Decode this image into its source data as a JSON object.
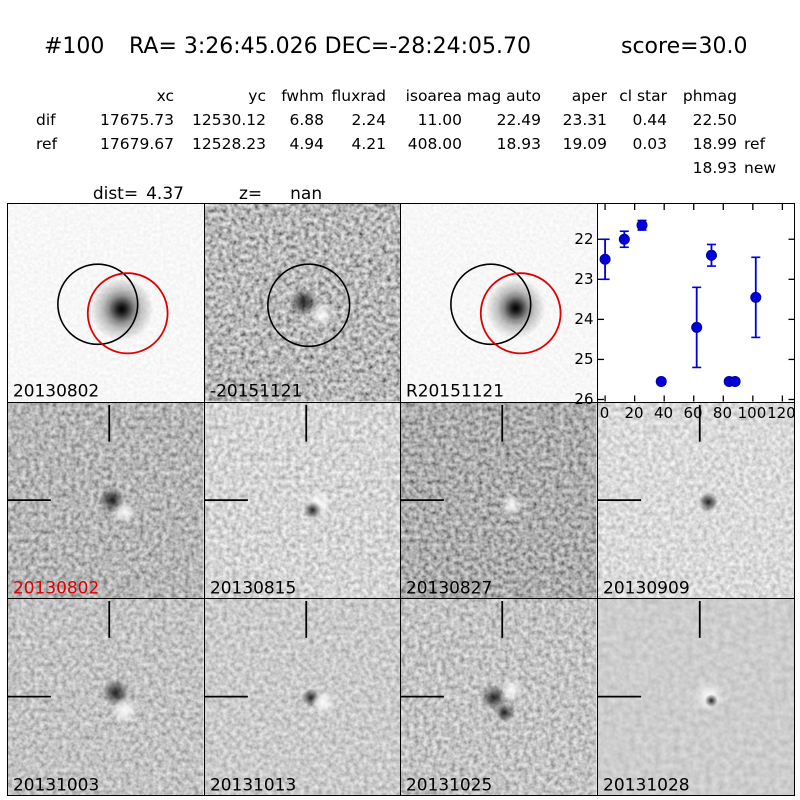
{
  "colors": {
    "accent_blue": "#0000dd",
    "label_red": "#dd0000",
    "frame_black": "#000000",
    "background": "#ffffff"
  },
  "header": {
    "id": "#100",
    "coords": "RA= 3:26:45.026 DEC=-28:24:05.70",
    "score": "score=30.0"
  },
  "table": {
    "columns": [
      "xc",
      "yc",
      "fwhm",
      "fluxrad",
      "isoarea",
      "mag auto",
      "aper",
      "cl star",
      "phmag"
    ],
    "rows": [
      {
        "label": "dif",
        "values": [
          "17675.73",
          "12530.12",
          "6.88",
          "2.24",
          "11.00",
          "22.49",
          "23.31",
          "0.44",
          "22.50"
        ],
        "suffix": ""
      },
      {
        "label": "ref",
        "values": [
          "17679.67",
          "12528.23",
          "4.94",
          "4.21",
          "408.00",
          "18.93",
          "19.09",
          "0.03",
          "18.99"
        ],
        "suffix": "ref"
      }
    ],
    "extra": {
      "value": "18.93",
      "suffix": "new"
    }
  },
  "info": {
    "dist_label": "dist=",
    "dist_value": "4.37",
    "z_label": "z=",
    "z_value": "nan"
  },
  "stamps": [
    {
      "label": "20130802",
      "label_color": "#000000",
      "type": "new-image-with-apertures"
    },
    {
      "label": "-20151121",
      "label_color": "#000000",
      "type": "difference-image"
    },
    {
      "label": "R20151121",
      "label_color": "#000000",
      "type": "reference-image-with-apertures"
    },
    {
      "label": "20130802",
      "label_color": "#dd0000",
      "type": "difference-stamp"
    },
    {
      "label": "20130815",
      "label_color": "#000000",
      "type": "difference-stamp"
    },
    {
      "label": "20130827",
      "label_color": "#000000",
      "type": "difference-stamp"
    },
    {
      "label": "20130909",
      "label_color": "#000000",
      "type": "difference-stamp"
    },
    {
      "label": "20131003",
      "label_color": "#000000",
      "type": "difference-stamp"
    },
    {
      "label": "20131013",
      "label_color": "#000000",
      "type": "difference-stamp"
    },
    {
      "label": "20131025",
      "label_color": "#000000",
      "type": "difference-stamp"
    },
    {
      "label": "20131028",
      "label_color": "#000000",
      "type": "difference-stamp"
    }
  ],
  "chart_data": {
    "type": "scatter",
    "title": "",
    "xlabel": "",
    "ylabel": "",
    "x_units": "days",
    "y_units": "magnitude",
    "y_inverted": true,
    "xlim": [
      -4.8,
      128.2
    ],
    "ylim": [
      26.05,
      21.12
    ],
    "xticks": [
      0,
      20,
      40,
      60,
      80,
      100,
      120
    ],
    "yticks": [
      22,
      23,
      24,
      25,
      26
    ],
    "grid": false,
    "legend": "none",
    "series": [
      {
        "name": "lightcurve",
        "color": "#0000dd",
        "marker": "circle",
        "points": [
          {
            "x": 0,
            "mag": 22.5,
            "err": 0.5
          },
          {
            "x": 13,
            "mag": 22.0,
            "err": 0.2
          },
          {
            "x": 25,
            "mag": 21.65,
            "err": 0.12
          },
          {
            "x": 38,
            "mag": 25.55,
            "err": 0.07
          },
          {
            "x": 62,
            "mag": 24.2,
            "err": 1.0
          },
          {
            "x": 72,
            "mag": 22.4,
            "err": 0.27
          },
          {
            "x": 84,
            "mag": 25.55,
            "err": 0.07
          },
          {
            "x": 88,
            "mag": 25.55,
            "err": 0.07
          },
          {
            "x": 102,
            "mag": 23.45,
            "err": 1.0
          }
        ]
      }
    ]
  }
}
